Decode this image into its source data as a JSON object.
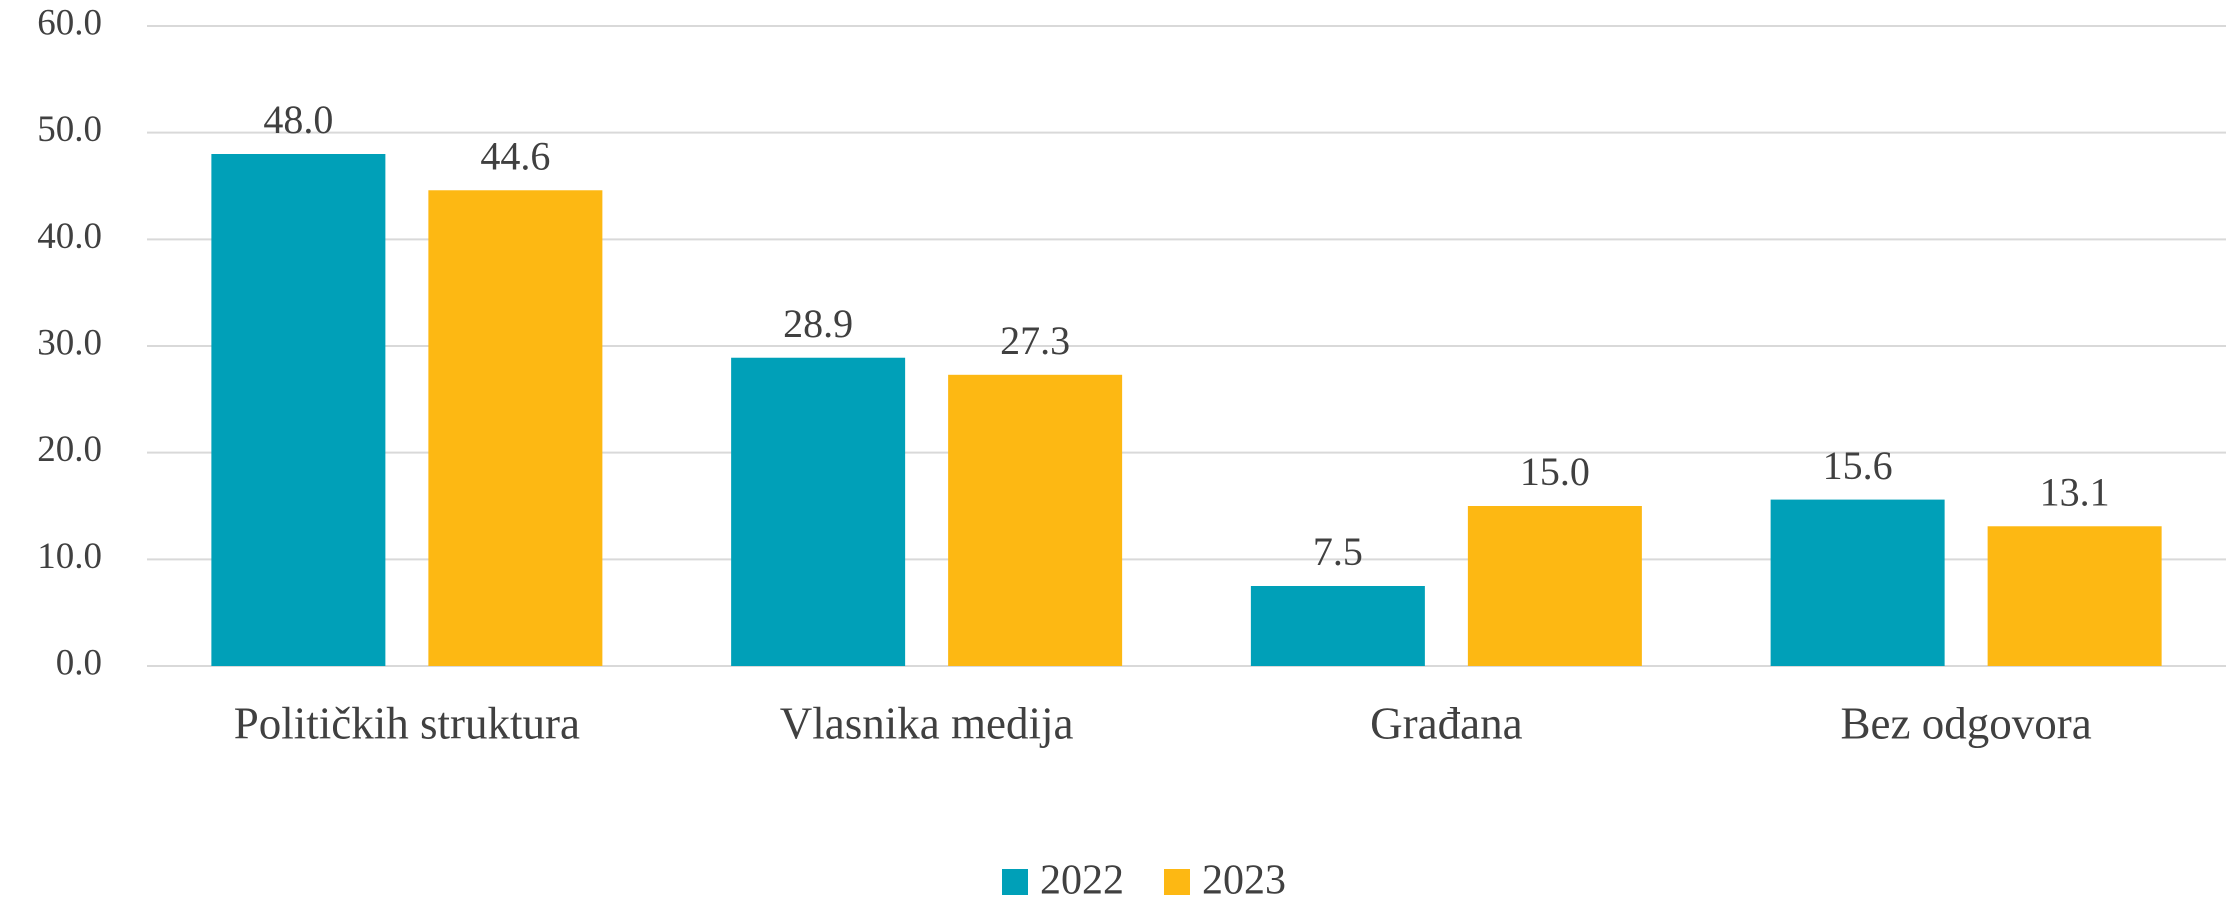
{
  "chart_data": {
    "type": "bar",
    "categories": [
      "Političkih struktura",
      "Vlasnika medija",
      "Građana",
      "Bez odgovora"
    ],
    "series": [
      {
        "name": "2022",
        "color": "#00a0b8",
        "values": [
          48.0,
          28.9,
          7.5,
          15.6
        ],
        "value_labels": [
          "48.0",
          "28.9",
          "7.5",
          "15.6"
        ]
      },
      {
        "name": "2023",
        "color": "#fdb813",
        "values": [
          44.6,
          27.3,
          15.0,
          13.1
        ],
        "value_labels": [
          "44.6",
          "27.3",
          "15.0",
          "13.1"
        ]
      }
    ],
    "ylim": [
      0,
      60
    ],
    "yticks": [
      {
        "value": 0,
        "label": "0.0"
      },
      {
        "value": 10,
        "label": "10.0"
      },
      {
        "value": 20,
        "label": "20.0"
      },
      {
        "value": 30,
        "label": "30.0"
      },
      {
        "value": 40,
        "label": "40.0"
      },
      {
        "value": 50,
        "label": "50.0"
      },
      {
        "value": 60,
        "label": "60.0"
      }
    ],
    "grid": true,
    "legend": "bottom"
  }
}
